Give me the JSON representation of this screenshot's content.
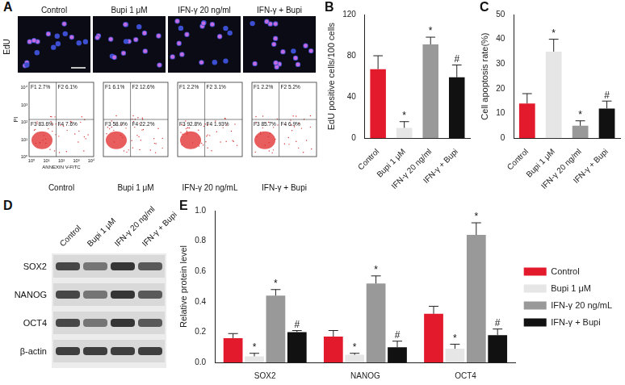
{
  "panel_labels": [
    "A",
    "B",
    "C",
    "D",
    "E"
  ],
  "edu_panel": {
    "row_label": "EdU",
    "titles": [
      "Control",
      "Bupi 1 μM",
      "IFN-γ 20 ng/ml",
      "IFN-γ + Bupi"
    ]
  },
  "flow_panel": {
    "x_label": "ANNEXIN V-FITC",
    "y_label": "PI",
    "axis_ticks": [
      "10⁰",
      "10¹",
      "10²",
      "10³",
      "10⁴"
    ],
    "names": [
      "Control",
      "Bupi 1 μM",
      "IFN-γ 20 ng/mL",
      "IFN-γ + Bupi"
    ],
    "quadrants": [
      [
        {
          "name": "F1",
          "text": "2.7%"
        },
        {
          "name": "F2",
          "text": "6.1%"
        },
        {
          "name": "F3",
          "text": "83.6%"
        },
        {
          "name": "F4",
          "text": "7.6%"
        }
      ],
      [
        {
          "name": "F1",
          "text": "6.1%"
        },
        {
          "name": "F2",
          "text": "12.6%"
        },
        {
          "name": "F3",
          "text": "58.9%"
        },
        {
          "name": "F4",
          "text": "22.2%"
        }
      ],
      [
        {
          "name": "F1",
          "text": "2.2%"
        },
        {
          "name": "F2",
          "text": "3.1%"
        },
        {
          "name": "F3",
          "text": "92.8%"
        },
        {
          "name": "F4",
          "text": "1.93%"
        }
      ],
      [
        {
          "name": "F1",
          "text": "2.2%"
        },
        {
          "name": "F2",
          "text": "5.2%"
        },
        {
          "name": "F3",
          "text": "85.7%"
        },
        {
          "name": "F4",
          "text": "6.9%"
        }
      ]
    ]
  },
  "blot_panel": {
    "lanes": [
      "Control",
      "Bupi 1 μM",
      "IFN-γ 20 ng/ml",
      "IFN-γ + Bupi"
    ],
    "rows": [
      "SOX2",
      "NANOG",
      "OCT4",
      "β-actin"
    ]
  },
  "chart_data": [
    {
      "type": "bar",
      "y_label": "EdU positive cells/100 cells",
      "categories": [
        "Control",
        "Bupi 1 μM",
        "IFN-γ 20 ng/ml",
        "IFN-γ + Bupi"
      ],
      "values": [
        67,
        10,
        91,
        59
      ],
      "errors": [
        13,
        6,
        7,
        12
      ],
      "marks": [
        null,
        "*",
        "*",
        "#"
      ],
      "colors": [
        "#e31a2c",
        "#e6e6e6",
        "#999999",
        "#111111"
      ],
      "ylim": [
        0,
        120
      ],
      "yticks": [
        0,
        40,
        80,
        120
      ],
      "grid": false
    },
    {
      "type": "bar",
      "y_label": "Cell apoptosis rate(%)",
      "categories": [
        "Control",
        "Bupi 1 μM",
        "IFN-γ 20 ng/ml",
        "IFN-γ + Bupi"
      ],
      "values": [
        14,
        35,
        5,
        12
      ],
      "errors": [
        4,
        5,
        2,
        3
      ],
      "marks": [
        null,
        "*",
        "*",
        "#"
      ],
      "colors": [
        "#e31a2c",
        "#e6e6e6",
        "#999999",
        "#111111"
      ],
      "ylim": [
        0,
        50
      ],
      "yticks": [
        0,
        10,
        20,
        30,
        40,
        50
      ],
      "grid": false
    },
    {
      "type": "bar",
      "y_label": "Relative protein level",
      "categories": [
        "SOX2",
        "NANOG",
        "OCT4"
      ],
      "series": [
        {
          "name": "Control",
          "color": "#e31a2c",
          "values": [
            0.16,
            0.17,
            0.32
          ],
          "errors": [
            0.03,
            0.04,
            0.05
          ]
        },
        {
          "name": "Bupi 1 μM",
          "color": "#e6e6e6",
          "values": [
            0.04,
            0.05,
            0.09
          ],
          "errors": [
            0.02,
            0.01,
            0.03
          ],
          "marks": [
            "*",
            "*",
            "*"
          ]
        },
        {
          "name": "IFN-γ 20 ng/mL",
          "color": "#999999",
          "values": [
            0.44,
            0.52,
            0.84
          ],
          "errors": [
            0.04,
            0.05,
            0.08
          ],
          "marks": [
            "*",
            "*",
            "*"
          ]
        },
        {
          "name": "IFN-γ + Bupi",
          "color": "#111111",
          "values": [
            0.2,
            0.1,
            0.18
          ],
          "errors": [
            0.01,
            0.04,
            0.04
          ],
          "marks": [
            "#",
            "#",
            "#"
          ]
        }
      ],
      "ylim": [
        0,
        1
      ],
      "yticks": [
        {
          "value": 0,
          "label": "0.0"
        },
        0.2,
        0.4,
        0.6,
        0.8,
        {
          "value": 1,
          "label": "1.0"
        }
      ],
      "legend": "right",
      "grid": false
    }
  ]
}
